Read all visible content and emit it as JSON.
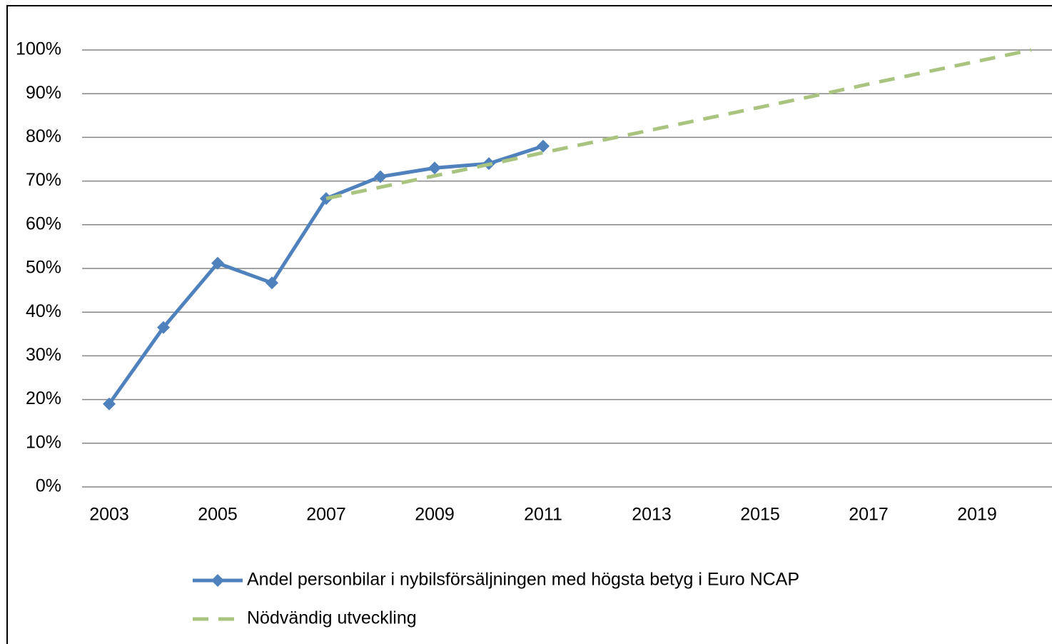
{
  "chart_data": {
    "type": "line",
    "x": [
      2003,
      2004,
      2005,
      2006,
      2007,
      2008,
      2009,
      2010,
      2011,
      2012,
      2013,
      2014,
      2015,
      2016,
      2017,
      2018,
      2019,
      2020
    ],
    "xlim": [
      2002.5,
      2020.5
    ],
    "xticks": [
      2003,
      2005,
      2007,
      2009,
      2011,
      2013,
      2015,
      2017,
      2019
    ],
    "ylim": [
      0,
      100
    ],
    "yticks": [
      {
        "value": 0,
        "label": "0%"
      },
      {
        "value": 10,
        "label": "10%"
      },
      {
        "value": 20,
        "label": "20%"
      },
      {
        "value": 30,
        "label": "30%"
      },
      {
        "value": 40,
        "label": "40%"
      },
      {
        "value": 50,
        "label": "50%"
      },
      {
        "value": 60,
        "label": "60%"
      },
      {
        "value": 70,
        "label": "70%"
      },
      {
        "value": 80,
        "label": "80%"
      },
      {
        "value": 90,
        "label": "90%"
      },
      {
        "value": 100,
        "label": "100%"
      }
    ],
    "grid": true,
    "legend": "bottom",
    "series": [
      {
        "name": "Andel personbilar i nybilsförsäljningen med högsta betyg i Euro NCAP",
        "color": "#4f81bd",
        "marker": "diamond",
        "values": [
          19,
          36.5,
          51.2,
          46.7,
          66,
          71,
          73,
          74,
          78,
          null,
          null,
          null,
          null,
          null,
          null,
          null,
          null,
          null
        ]
      },
      {
        "name": "Nödvändig utveckling",
        "color": "#a9c47f",
        "dashed": true,
        "values": [
          null,
          null,
          null,
          null,
          66,
          68.6,
          71.2,
          73.8,
          76.5,
          79.1,
          81.7,
          84.3,
          86.9,
          89.5,
          92.2,
          94.8,
          97.4,
          100
        ]
      }
    ]
  }
}
